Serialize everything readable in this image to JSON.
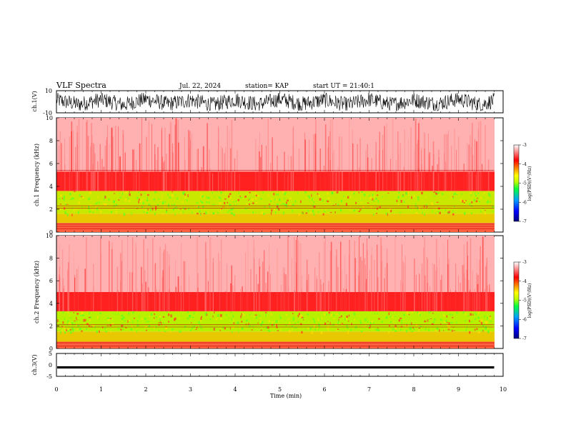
{
  "header": {
    "title": "VLF Spectra",
    "date": "Jul. 22, 2024",
    "station": "station= KAP",
    "start": "start UT = 21:40:1"
  },
  "chart_data": [
    {
      "type": "line",
      "panel": "ch1-waveform",
      "ylabel": "ch.1(V)",
      "ylim": [
        -10,
        10
      ],
      "yticks": [
        "10",
        "-10"
      ],
      "x": [
        0,
        0.5,
        1,
        1.5,
        2,
        2.5,
        3,
        3.5,
        4,
        4.5,
        5,
        5.5,
        6,
        6.5,
        7,
        7.5,
        8,
        8.5,
        9,
        9.5,
        9.8
      ],
      "series": [
        {
          "values": [
            4,
            -6,
            5,
            -7,
            6,
            -5,
            4,
            -7,
            5,
            -6,
            6,
            -5,
            4,
            -7,
            5,
            -6,
            4,
            -5,
            6,
            -7,
            3
          ]
        }
      ],
      "envelope_min": -8,
      "envelope_max": 8
    },
    {
      "type": "heatmap",
      "panel": "ch1-spectrogram",
      "ylabel": "ch.1 Frequency (kHz)",
      "ylim": [
        0,
        10
      ],
      "yticks": [
        "0",
        "2",
        "4",
        "6",
        "8",
        "10"
      ],
      "colorbar": {
        "label": "log(PSD)(V²/Hz)",
        "range": [
          -7,
          -3
        ],
        "ticks": [
          "-3",
          "-4",
          "-5",
          "-6",
          "-7"
        ],
        "colors": [
          "#000080",
          "#0000ff",
          "#00a0ff",
          "#00ff40",
          "#c0ff00",
          "#ffff00",
          "#ff8000",
          "#ff0000",
          "#ffffff"
        ]
      },
      "x_range_min": [
        0,
        9.8
      ],
      "bands": [
        {
          "fmin": 0,
          "fmax": 0.8,
          "color": "#ff6040"
        },
        {
          "fmin": 0.8,
          "fmax": 1.6,
          "color": "#e8c800"
        },
        {
          "fmin": 1.6,
          "fmax": 3.6,
          "color": "#c8e800"
        },
        {
          "fmin": 3.6,
          "fmax": 5.3,
          "color": "#ff2020"
        },
        {
          "fmin": 5.3,
          "fmax": 10,
          "color": "#ffb0b0"
        }
      ],
      "lines_khz": [
        0.3,
        0.5,
        0.7,
        2.1,
        2.3,
        5.4
      ]
    },
    {
      "type": "heatmap",
      "panel": "ch2-spectrogram",
      "ylabel": "ch.2 Frequency (kHz)",
      "ylim": [
        0,
        10
      ],
      "yticks": [
        "0",
        "2",
        "4",
        "6",
        "8",
        "10"
      ],
      "colorbar": {
        "label": "log(PSD)(V²/Hz)",
        "range": [
          -7,
          -3
        ],
        "ticks": [
          "-3",
          "-4",
          "-5",
          "-6",
          "-7"
        ],
        "colors": [
          "#000080",
          "#0000ff",
          "#00a0ff",
          "#00ff40",
          "#c0ff00",
          "#ffff00",
          "#ff8000",
          "#ff0000",
          "#ffffff"
        ]
      },
      "x_range_min": [
        0,
        9.8
      ],
      "bands": [
        {
          "fmin": 0,
          "fmax": 0.6,
          "color": "#ff6040"
        },
        {
          "fmin": 0.6,
          "fmax": 1.5,
          "color": "#e8c800"
        },
        {
          "fmin": 1.5,
          "fmax": 3.3,
          "color": "#b8f000"
        },
        {
          "fmin": 3.3,
          "fmax": 5.0,
          "color": "#ff2020"
        },
        {
          "fmin": 5.0,
          "fmax": 10,
          "color": "#ffb0b0"
        }
      ],
      "lines_khz": [
        0.2,
        0.5,
        1.9,
        2.1
      ]
    },
    {
      "type": "line",
      "panel": "ch3-waveform",
      "ylabel": "ch.3(V)",
      "ylim": [
        -5,
        5
      ],
      "yticks": [
        "5",
        "0",
        "-5"
      ],
      "band": [
        -1.6,
        -0.6
      ],
      "x_end": 9.8
    }
  ],
  "x_axis": {
    "label": "Time (min)",
    "range": [
      0,
      10
    ],
    "ticks": [
      "0",
      "1",
      "2",
      "3",
      "4",
      "5",
      "6",
      "7",
      "8",
      "9",
      "10"
    ]
  }
}
